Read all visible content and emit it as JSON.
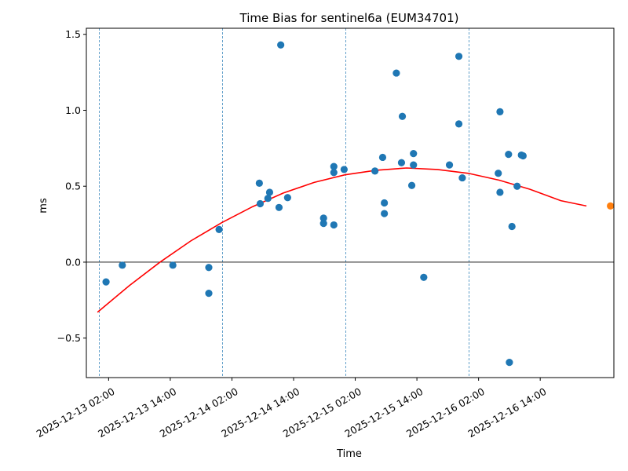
{
  "chart_data": {
    "type": "scatter",
    "title": "Time Bias for sentinel6a (EUM34701)",
    "xlabel": "Time",
    "ylabel": "ms",
    "x_axis_type": "datetime",
    "xlim": [
      "2025-12-12T21:40",
      "2025-12-17T04:20"
    ],
    "ylim": [
      -0.76,
      1.54
    ],
    "yticks": [
      -0.5,
      0.0,
      0.5,
      1.0,
      1.5
    ],
    "ytick_labels": [
      "−0.5",
      "0.0",
      "0.5",
      "1.0",
      "1.5"
    ],
    "xticks": [
      "2025-12-13T02:00",
      "2025-12-13T14:00",
      "2025-12-14T02:00",
      "2025-12-14T14:00",
      "2025-12-15T02:00",
      "2025-12-15T14:00",
      "2025-12-16T02:00",
      "2025-12-16T14:00"
    ],
    "xtick_labels": [
      "2025-12-13 02:00",
      "2025-12-13 14:00",
      "2025-12-14 02:00",
      "2025-12-14 14:00",
      "2025-12-15 02:00",
      "2025-12-15 14:00",
      "2025-12-16 02:00",
      "2025-12-16 14:00"
    ],
    "zero_line": true,
    "vertical_lines": [
      "2025-12-13T00:10",
      "2025-12-14T00:10",
      "2025-12-15T00:10",
      "2025-12-16T00:10"
    ],
    "series": [
      {
        "type": "scatter",
        "color": "#1f77b4",
        "points": [
          {
            "x": "2025-12-13T01:30",
            "y": -0.13
          },
          {
            "x": "2025-12-13T04:40",
            "y": -0.02
          },
          {
            "x": "2025-12-13T14:30",
            "y": -0.02
          },
          {
            "x": "2025-12-13T21:30",
            "y": -0.035
          },
          {
            "x": "2025-12-13T21:30",
            "y": -0.205
          },
          {
            "x": "2025-12-13T23:30",
            "y": 0.215
          },
          {
            "x": "2025-12-14T07:20",
            "y": 0.52
          },
          {
            "x": "2025-12-14T07:30",
            "y": 0.385
          },
          {
            "x": "2025-12-14T09:00",
            "y": 0.42
          },
          {
            "x": "2025-12-14T09:20",
            "y": 0.46
          },
          {
            "x": "2025-12-14T11:10",
            "y": 0.36
          },
          {
            "x": "2025-12-14T11:30",
            "y": 1.43
          },
          {
            "x": "2025-12-14T12:50",
            "y": 0.425
          },
          {
            "x": "2025-12-14T19:50",
            "y": 0.29
          },
          {
            "x": "2025-12-14T19:50",
            "y": 0.255
          },
          {
            "x": "2025-12-14T21:50",
            "y": 0.63
          },
          {
            "x": "2025-12-14T21:50",
            "y": 0.59
          },
          {
            "x": "2025-12-14T21:50",
            "y": 0.245
          },
          {
            "x": "2025-12-14T23:50",
            "y": 0.61
          },
          {
            "x": "2025-12-15T05:50",
            "y": 0.6
          },
          {
            "x": "2025-12-15T07:20",
            "y": 0.69
          },
          {
            "x": "2025-12-15T07:40",
            "y": 0.39
          },
          {
            "x": "2025-12-15T07:40",
            "y": 0.32
          },
          {
            "x": "2025-12-15T10:00",
            "y": 1.245
          },
          {
            "x": "2025-12-15T11:00",
            "y": 0.655
          },
          {
            "x": "2025-12-15T11:10",
            "y": 0.96
          },
          {
            "x": "2025-12-15T13:00",
            "y": 0.505
          },
          {
            "x": "2025-12-15T13:20",
            "y": 0.715
          },
          {
            "x": "2025-12-15T13:20",
            "y": 0.64
          },
          {
            "x": "2025-12-15T15:20",
            "y": -0.1
          },
          {
            "x": "2025-12-15T20:20",
            "y": 0.64
          },
          {
            "x": "2025-12-15T22:10",
            "y": 1.355
          },
          {
            "x": "2025-12-15T22:10",
            "y": 0.91
          },
          {
            "x": "2025-12-15T22:50",
            "y": 0.555
          },
          {
            "x": "2025-12-16T05:50",
            "y": 0.585
          },
          {
            "x": "2025-12-16T06:10",
            "y": 0.99
          },
          {
            "x": "2025-12-16T06:10",
            "y": 0.46
          },
          {
            "x": "2025-12-16T07:50",
            "y": 0.71
          },
          {
            "x": "2025-12-16T08:00",
            "y": -0.66
          },
          {
            "x": "2025-12-16T08:30",
            "y": 0.235
          },
          {
            "x": "2025-12-16T09:30",
            "y": 0.5
          },
          {
            "x": "2025-12-16T10:20",
            "y": 0.705
          },
          {
            "x": "2025-12-16T10:40",
            "y": 0.7
          }
        ]
      },
      {
        "type": "scatter",
        "color": "#ff7f0e",
        "points": [
          {
            "x": "2025-12-17T03:40",
            "y": 0.37
          }
        ]
      },
      {
        "type": "line",
        "color": "#ff0000",
        "points": [
          {
            "x": "2025-12-12T23:50",
            "y": -0.33
          },
          {
            "x": "2025-12-13T06:00",
            "y": -0.155
          },
          {
            "x": "2025-12-13T12:00",
            "y": 0.0
          },
          {
            "x": "2025-12-13T18:00",
            "y": 0.14
          },
          {
            "x": "2025-12-14T00:00",
            "y": 0.26
          },
          {
            "x": "2025-12-14T06:00",
            "y": 0.365
          },
          {
            "x": "2025-12-14T12:00",
            "y": 0.455
          },
          {
            "x": "2025-12-14T18:00",
            "y": 0.525
          },
          {
            "x": "2025-12-15T00:00",
            "y": 0.575
          },
          {
            "x": "2025-12-15T06:00",
            "y": 0.605
          },
          {
            "x": "2025-12-15T12:00",
            "y": 0.62
          },
          {
            "x": "2025-12-15T18:00",
            "y": 0.61
          },
          {
            "x": "2025-12-16T00:00",
            "y": 0.585
          },
          {
            "x": "2025-12-16T06:00",
            "y": 0.54
          },
          {
            "x": "2025-12-16T12:00",
            "y": 0.48
          },
          {
            "x": "2025-12-16T18:00",
            "y": 0.405
          },
          {
            "x": "2025-12-16T23:00",
            "y": 0.37
          }
        ]
      }
    ]
  }
}
